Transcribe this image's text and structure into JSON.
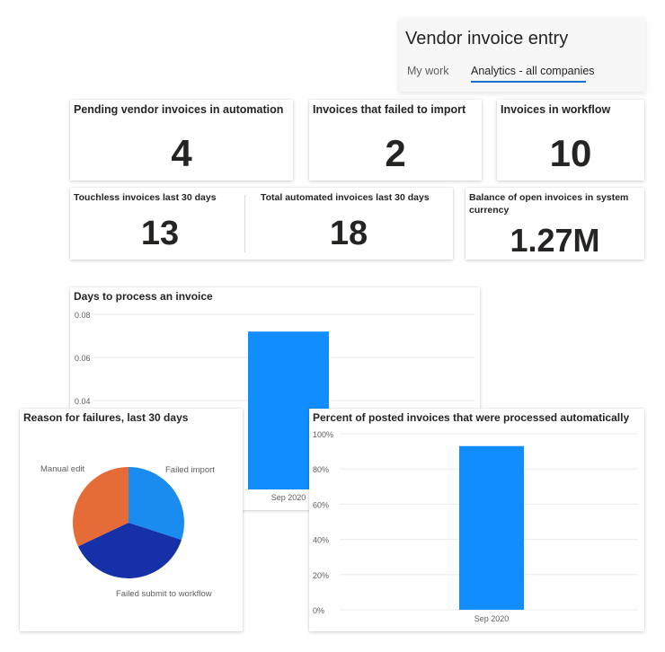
{
  "header": {
    "title": "Vendor invoice entry",
    "tabs": [
      {
        "label": "My work",
        "selected": false
      },
      {
        "label": "Analytics - all companies",
        "selected": true
      }
    ]
  },
  "kpis": {
    "pending": {
      "title": "Pending vendor invoices in automation",
      "value": "4"
    },
    "failed": {
      "title": "Invoices that failed to import",
      "value": "2"
    },
    "workflow": {
      "title": "Invoices in workflow",
      "value": "10"
    },
    "touchless": {
      "title": "Touchless invoices last 30 days",
      "value": "13"
    },
    "automated": {
      "title": "Total automated invoices last 30 days",
      "value": "18"
    },
    "balance": {
      "title": "Balance of open invoices in system currency",
      "value": "1.27M"
    }
  },
  "colors": {
    "accent": "#1170d0",
    "bar": "#118dff",
    "pie_failed_import": "#1a8cf0",
    "pie_failed_submit": "#1630a8",
    "pie_manual_edit": "#e66c37"
  },
  "chart_data": [
    {
      "type": "bar",
      "title": "Days to process an invoice",
      "categories": [
        "Sep 2020"
      ],
      "values": [
        0.072
      ],
      "yticks": [
        "0.08",
        "0.06",
        "0.04"
      ],
      "yvalues": [
        0.08,
        0.06,
        0.04
      ],
      "ylim": [
        0,
        0.08
      ],
      "grid": true
    },
    {
      "type": "pie",
      "title": "Reason for failures, last 30 days",
      "labels": [
        "Failed import",
        "Failed submit to workflow",
        "Manual edit"
      ],
      "values": [
        30,
        38,
        32
      ]
    },
    {
      "type": "bar",
      "title": "Percent of posted invoices that were processed automatically",
      "categories": [
        "Sep 2020"
      ],
      "values": [
        93
      ],
      "yticks": [
        "100%",
        "80%",
        "60%",
        "40%",
        "20%",
        "0%"
      ],
      "yvalues": [
        100,
        80,
        60,
        40,
        20,
        0
      ],
      "ylim": [
        0,
        100
      ],
      "grid": true
    }
  ]
}
